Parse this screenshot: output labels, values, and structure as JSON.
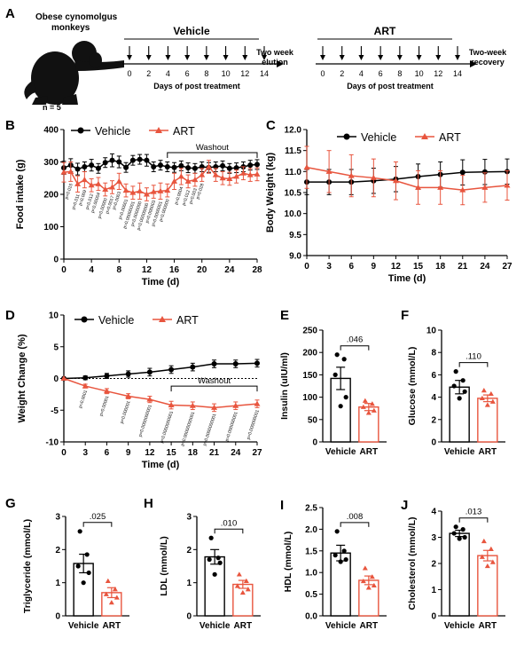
{
  "colors": {
    "vehicle": "#000000",
    "art": "#e8553e",
    "axis": "#000000"
  },
  "panel_a": {
    "label": "A",
    "subject_line1": "Obese cynomolgus",
    "subject_line2": "monkeys",
    "n_label": "n = 5",
    "icon": "monkey-silhouette-icon",
    "vehicle_title": "Vehicle",
    "art_title": "ART",
    "ticks": [
      "0",
      "2",
      "4",
      "6",
      "8",
      "10",
      "12",
      "14"
    ],
    "days_label": "Days of post treatment",
    "elution_line1": "Two week",
    "elution_line2": "elution",
    "recovery_line1": "Two-week",
    "recovery_line2": "recovery"
  },
  "chart_data": [
    {
      "id": "B",
      "type": "line",
      "panel_label": "B",
      "title": "",
      "xlabel": "Time (d)",
      "ylabel": "Food intake (g)",
      "xlim": [
        0,
        28
      ],
      "ylim": [
        0,
        400
      ],
      "xticks": [
        0,
        4,
        8,
        12,
        16,
        20,
        24,
        28
      ],
      "yticks": [
        0,
        100,
        200,
        300,
        400
      ],
      "legend": [
        "Vehicle",
        "ART"
      ],
      "legend_position": "top-left",
      "washout": {
        "label": "Washout",
        "from": 15,
        "to": 28
      },
      "series": [
        {
          "name": "Vehicle",
          "x": [
            0,
            1,
            2,
            3,
            4,
            5,
            6,
            7,
            8,
            9,
            10,
            11,
            12,
            13,
            14,
            15,
            16,
            17,
            18,
            19,
            20,
            21,
            22,
            23,
            24,
            25,
            26,
            27,
            28
          ],
          "values": [
            282,
            290,
            278,
            285,
            290,
            280,
            298,
            305,
            300,
            283,
            305,
            308,
            305,
            285,
            290,
            285,
            283,
            288,
            282,
            280,
            285,
            283,
            285,
            288,
            280,
            282,
            285,
            290,
            292
          ],
          "errors": [
            20,
            20,
            18,
            15,
            18,
            15,
            15,
            20,
            18,
            15,
            15,
            15,
            18,
            15,
            15,
            15,
            15,
            15,
            15,
            15,
            15,
            15,
            15,
            15,
            15,
            15,
            15,
            15,
            15
          ]
        },
        {
          "name": "ART",
          "x": [
            0,
            1,
            2,
            3,
            4,
            5,
            6,
            7,
            8,
            9,
            10,
            11,
            12,
            13,
            14,
            15,
            16,
            17,
            18,
            19,
            20,
            21,
            22,
            23,
            24,
            25,
            26,
            27,
            28
          ],
          "values": [
            268,
            270,
            232,
            245,
            228,
            232,
            215,
            222,
            240,
            212,
            205,
            210,
            200,
            208,
            210,
            212,
            240,
            255,
            240,
            245,
            260,
            285,
            260,
            250,
            248,
            255,
            265,
            260,
            262
          ],
          "errors": [
            30,
            30,
            25,
            25,
            20,
            20,
            20,
            20,
            25,
            20,
            20,
            25,
            20,
            20,
            25,
            20,
            25,
            25,
            20,
            20,
            20,
            20,
            20,
            20,
            20,
            20,
            20,
            20,
            20
          ]
        }
      ],
      "pvalue_annotations": [
        {
          "x": 1,
          "text": "p=0.015"
        },
        {
          "x": 2,
          "text": "p=0.011"
        },
        {
          "x": 3,
          "text": "p=0.009"
        },
        {
          "x": 4,
          "text": "p=0.012"
        },
        {
          "x": 5,
          "text": "p=0.00004"
        },
        {
          "x": 6,
          "text": "p=0.00000"
        },
        {
          "x": 7,
          "text": "p=0.0017"
        },
        {
          "x": 8,
          "text": "p=0.0003"
        },
        {
          "x": 9,
          "text": "p=0.00001"
        },
        {
          "x": 10,
          "text": "p=0.00000001"
        },
        {
          "x": 11,
          "text": "p=0.0000000"
        },
        {
          "x": 12,
          "text": "p=0.00000000"
        },
        {
          "x": 13,
          "text": "p=0.000003"
        },
        {
          "x": 14,
          "text": "p=0.0000001"
        },
        {
          "x": 15,
          "text": "p=0.000000"
        },
        {
          "x": 17,
          "text": "p=0.0004"
        },
        {
          "x": 18,
          "text": "p=0.012"
        },
        {
          "x": 19,
          "text": "p=0.003"
        },
        {
          "x": 20,
          "text": "p=0.028"
        }
      ]
    },
    {
      "id": "C",
      "type": "line",
      "panel_label": "C",
      "title": "",
      "xlabel": "Time (d)",
      "ylabel": "Body Weight (kg)",
      "xlim": [
        0,
        27
      ],
      "ylim": [
        9.0,
        12.0
      ],
      "xticks": [
        0,
        3,
        6,
        9,
        12,
        15,
        18,
        21,
        24,
        27
      ],
      "yticks": [
        9.0,
        9.5,
        10.0,
        10.5,
        11.0,
        11.5,
        12.0
      ],
      "legend": [
        "Vehicle",
        "ART"
      ],
      "legend_position": "top-right",
      "series": [
        {
          "name": "Vehicle",
          "x": [
            0,
            3,
            6,
            9,
            12,
            15,
            18,
            21,
            24,
            27
          ],
          "values": [
            10.75,
            10.75,
            10.75,
            10.78,
            10.82,
            10.88,
            10.93,
            10.98,
            10.99,
            11.0
          ],
          "errors": [
            0.3,
            0.3,
            0.3,
            0.3,
            0.3,
            0.3,
            0.3,
            0.3,
            0.3,
            0.3
          ]
        },
        {
          "name": "ART",
          "x": [
            0,
            3,
            6,
            9,
            12,
            15,
            18,
            21,
            24,
            27
          ],
          "values": [
            11.1,
            11.0,
            10.9,
            10.85,
            10.78,
            10.62,
            10.62,
            10.56,
            10.62,
            10.67
          ],
          "errors": [
            0.5,
            0.5,
            0.5,
            0.45,
            0.45,
            0.4,
            0.4,
            0.35,
            0.35,
            0.35
          ]
        }
      ]
    },
    {
      "id": "D",
      "type": "line",
      "panel_label": "D",
      "title": "",
      "xlabel": "Time (d)",
      "ylabel": "Weight Change (%)",
      "xlim": [
        0,
        27
      ],
      "ylim": [
        -10,
        10
      ],
      "xticks": [
        0,
        3,
        6,
        9,
        12,
        15,
        18,
        21,
        24,
        27
      ],
      "yticks": [
        -10,
        -5,
        0,
        5,
        10
      ],
      "legend": [
        "Vehicle",
        "ART"
      ],
      "legend_position": "top-left",
      "washout": {
        "label": "Washout",
        "from": 15,
        "to": 27
      },
      "series": [
        {
          "name": "Vehicle",
          "x": [
            0,
            3,
            6,
            9,
            12,
            15,
            18,
            21,
            24,
            27
          ],
          "values": [
            0,
            0.1,
            0.4,
            0.7,
            1.0,
            1.4,
            1.8,
            2.3,
            2.3,
            2.4
          ],
          "errors": [
            0,
            0.3,
            0.4,
            0.5,
            0.6,
            0.6,
            0.6,
            0.6,
            0.6,
            0.6
          ]
        },
        {
          "name": "ART",
          "x": [
            0,
            3,
            6,
            9,
            12,
            15,
            18,
            21,
            24,
            27
          ],
          "values": [
            0,
            -1.2,
            -2.0,
            -2.8,
            -3.3,
            -4.2,
            -4.3,
            -4.6,
            -4.3,
            -4.0
          ],
          "errors": [
            0,
            0.3,
            0.4,
            0.4,
            0.5,
            0.6,
            0.6,
            0.6,
            0.6,
            0.6
          ]
        }
      ],
      "pvalue_annotations": [
        {
          "x": 3,
          "text": "p=0.0001"
        },
        {
          "x": 6,
          "text": "p=0.00001"
        },
        {
          "x": 9,
          "text": "p=0.000001"
        },
        {
          "x": 12,
          "text": "p=0.0000000001"
        },
        {
          "x": 15,
          "text": "p=0.0000000001"
        },
        {
          "x": 18,
          "text": "p=0.00000000001"
        },
        {
          "x": 21,
          "text": "p=0.0000000001"
        },
        {
          "x": 24,
          "text": "p=0.000000001"
        },
        {
          "x": 27,
          "text": "p=0.000000001"
        }
      ]
    },
    {
      "id": "E",
      "type": "bar",
      "panel_label": "E",
      "categories": [
        "Vehicle",
        "ART"
      ],
      "values": [
        142,
        78
      ],
      "errors": [
        25,
        8
      ],
      "points": [
        [
          195,
          185,
          150,
          100,
          80
        ],
        [
          92,
          85,
          78,
          70,
          65
        ]
      ],
      "ylabel": "Insulin (uIU/ml)",
      "ylim": [
        0,
        250
      ],
      "yticks": [
        0,
        50,
        100,
        150,
        200,
        250
      ],
      "pvalue": ".046"
    },
    {
      "id": "F",
      "type": "bar",
      "panel_label": "F",
      "categories": [
        "Vehicle",
        "ART"
      ],
      "values": [
        4.9,
        3.9
      ],
      "errors": [
        0.6,
        0.3
      ],
      "points": [
        [
          6.3,
          5.5,
          5.0,
          4.5,
          3.9
        ],
        [
          4.6,
          4.3,
          3.9,
          3.6,
          3.3
        ]
      ],
      "ylabel": "Glucose (mmol/L)",
      "ylim": [
        0,
        10
      ],
      "yticks": [
        0,
        2,
        4,
        6,
        8,
        10
      ],
      "pvalue": ".110"
    },
    {
      "id": "G",
      "type": "bar",
      "panel_label": "G",
      "categories": [
        "Vehicle",
        "ART"
      ],
      "values": [
        1.58,
        0.7
      ],
      "errors": [
        0.28,
        0.15
      ],
      "points": [
        [
          2.55,
          1.85,
          1.5,
          1.3,
          1.0
        ],
        [
          1.05,
          0.8,
          0.65,
          0.55,
          0.4
        ]
      ],
      "ylabel": "Triglyceride (mmol/L)",
      "ylim": [
        0,
        3
      ],
      "yticks": [
        0,
        1,
        2,
        3
      ],
      "pvalue": ".025"
    },
    {
      "id": "H",
      "type": "bar",
      "panel_label": "H",
      "categories": [
        "Vehicle",
        "ART"
      ],
      "values": [
        1.78,
        0.95
      ],
      "errors": [
        0.22,
        0.12
      ],
      "points": [
        [
          2.35,
          1.75,
          1.7,
          1.6,
          1.25
        ],
        [
          1.25,
          1.05,
          0.9,
          0.8,
          0.7
        ]
      ],
      "ylabel": "LDL (mmol/L)",
      "ylim": [
        0,
        3
      ],
      "yticks": [
        0,
        1,
        2,
        3
      ],
      "pvalue": ".010"
    },
    {
      "id": "I",
      "type": "bar",
      "panel_label": "I",
      "categories": [
        "Vehicle",
        "ART"
      ],
      "values": [
        1.45,
        0.82
      ],
      "errors": [
        0.18,
        0.1
      ],
      "points": [
        [
          1.95,
          1.5,
          1.4,
          1.3,
          1.25
        ],
        [
          1.1,
          0.9,
          0.8,
          0.7,
          0.65
        ]
      ],
      "ylabel": "HDL (mmol/L)",
      "ylim": [
        0,
        2.5
      ],
      "yticks": [
        0.0,
        0.5,
        1.0,
        1.5,
        2.0,
        2.5
      ],
      "pvalue": ".008"
    },
    {
      "id": "J",
      "type": "bar",
      "panel_label": "J",
      "categories": [
        "Vehicle",
        "ART"
      ],
      "values": [
        3.15,
        2.3
      ],
      "errors": [
        0.12,
        0.2
      ],
      "points": [
        [
          3.4,
          3.3,
          3.15,
          3.0,
          2.95
        ],
        [
          2.85,
          2.55,
          2.25,
          2.05,
          1.9
        ]
      ],
      "ylabel": "Cholesterol (mmol/L)",
      "ylim": [
        0,
        4
      ],
      "yticks": [
        0,
        1,
        2,
        3,
        4
      ],
      "pvalue": ".013"
    }
  ]
}
